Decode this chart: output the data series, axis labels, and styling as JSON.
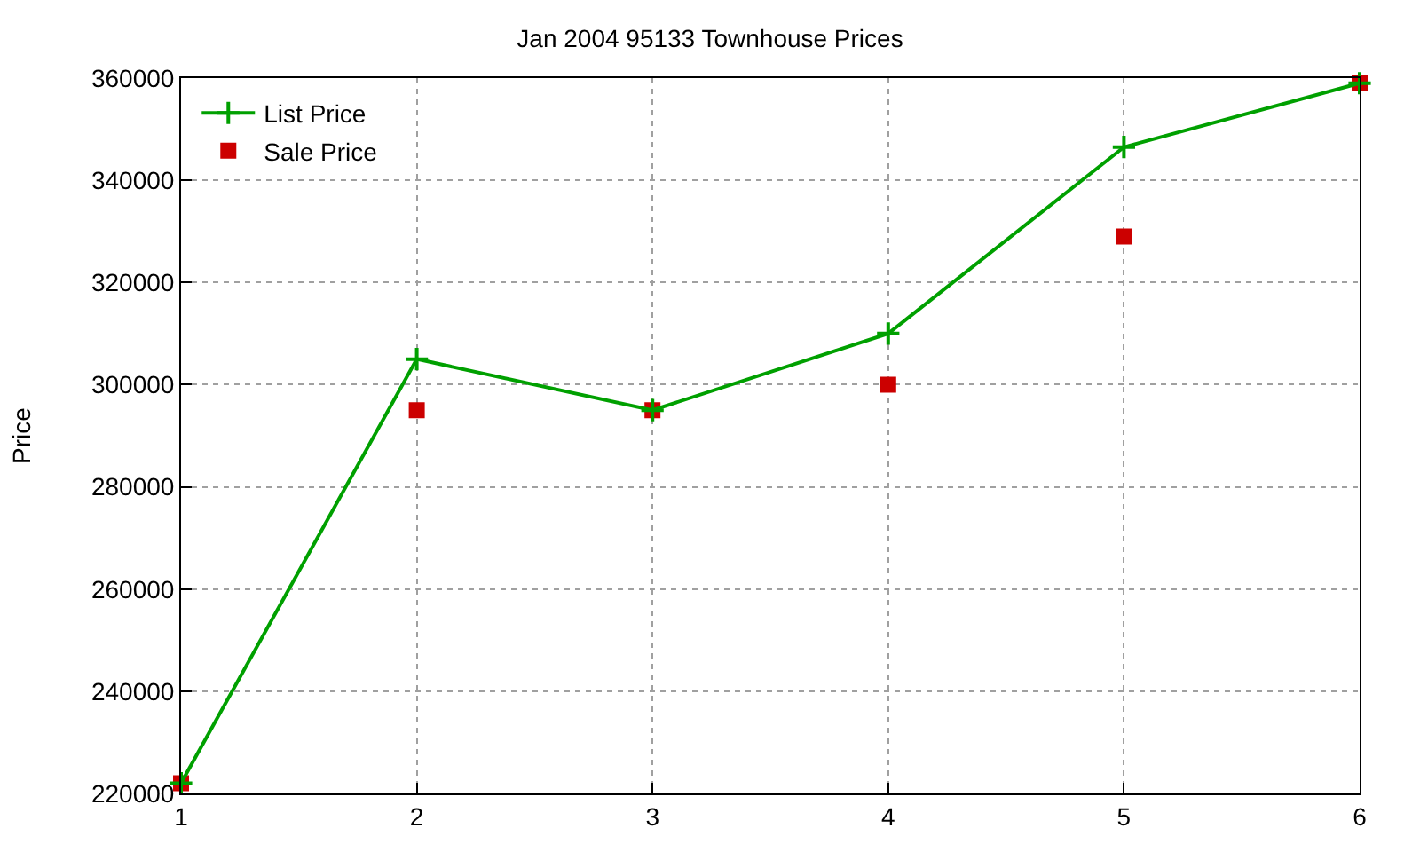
{
  "chart_data": {
    "type": "line",
    "title": "Jan 2004 95133 Townhouse Prices",
    "ylabel": "Price",
    "x": [
      1,
      2,
      3,
      4,
      5,
      6
    ],
    "series": [
      {
        "name": "List Price",
        "color": "#00a000",
        "marker": "cross",
        "values": [
          222000,
          305000,
          295000,
          310000,
          346500,
          359000
        ]
      },
      {
        "name": "Sale Price",
        "type": "scatter",
        "color": "#cc0000",
        "marker": "square",
        "values": [
          222000,
          295000,
          295000,
          300000,
          329000,
          359000
        ]
      }
    ],
    "xlim": [
      1,
      6
    ],
    "xticks": [
      1,
      2,
      3,
      4,
      5,
      6
    ],
    "ylim": [
      220000,
      360000
    ],
    "yticks": [
      220000,
      240000,
      260000,
      280000,
      300000,
      320000,
      340000,
      360000
    ],
    "grid": true,
    "legend": "top left"
  }
}
